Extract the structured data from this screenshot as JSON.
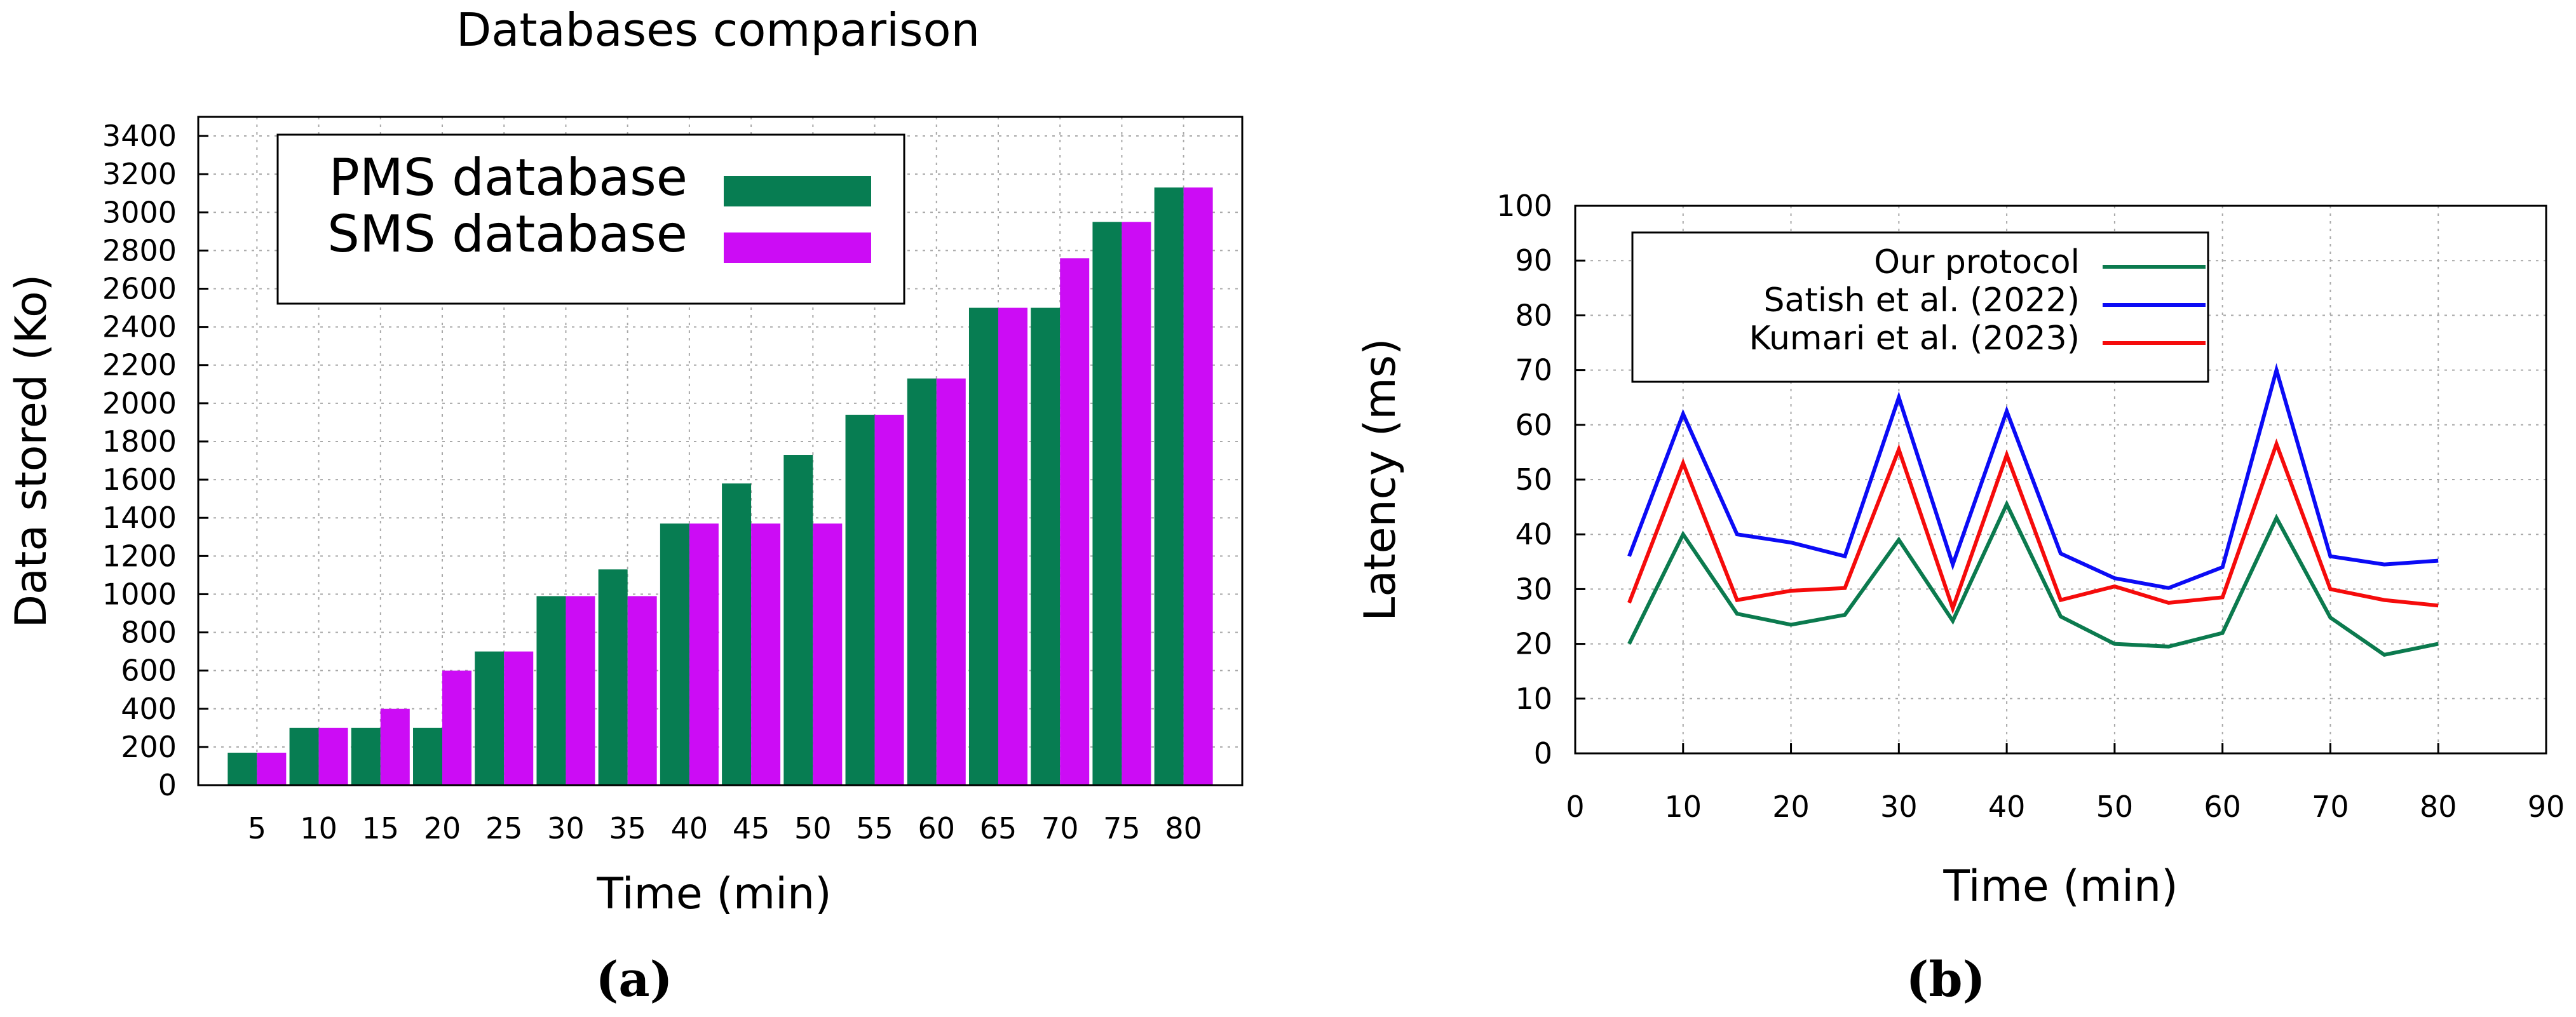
{
  "chart_data": [
    {
      "panel_label": "(a)",
      "type": "bar",
      "title": "Databases comparison",
      "xlabel": "Time (min)",
      "ylabel": "Data stored (Ko)",
      "ylim": [
        0,
        3500
      ],
      "yticks": [
        0,
        200,
        400,
        600,
        800,
        1000,
        1200,
        1400,
        1600,
        1800,
        2000,
        2200,
        2400,
        2600,
        2800,
        3000,
        3200,
        3400
      ],
      "grid": true,
      "legend_position": "top-left",
      "categories": [
        "5",
        "10",
        "15",
        "20",
        "25",
        "30",
        "35",
        "40",
        "45",
        "50",
        "55",
        "60",
        "65",
        "70",
        "75",
        "80"
      ],
      "series": [
        {
          "name": "PMS database",
          "color": "#077d52",
          "values": [
            170,
            300,
            300,
            300,
            700,
            990,
            1130,
            1370,
            1580,
            1730,
            1940,
            2130,
            2500,
            2500,
            2950,
            3130
          ]
        },
        {
          "name": "SMS database",
          "color": "#cc0cf5",
          "values": [
            170,
            300,
            400,
            600,
            700,
            990,
            990,
            1370,
            1370,
            1370,
            1940,
            2130,
            2500,
            2760,
            2950,
            3130
          ]
        }
      ]
    },
    {
      "panel_label": "(b)",
      "type": "line",
      "title": "",
      "xlabel": "Time (min)",
      "ylabel": "Latency (ms)",
      "xlim": [
        0,
        90
      ],
      "ylim": [
        0,
        100
      ],
      "xticks": [
        0,
        10,
        20,
        30,
        40,
        50,
        60,
        70,
        80,
        90
      ],
      "yticks": [
        0,
        10,
        20,
        30,
        40,
        50,
        60,
        70,
        80,
        90,
        100
      ],
      "grid": true,
      "legend_position": "top-left",
      "x": [
        5,
        10,
        15,
        20,
        25,
        30,
        35,
        40,
        45,
        50,
        55,
        60,
        65,
        70,
        75,
        80
      ],
      "series": [
        {
          "name": "Our protocol",
          "color": "#0b7a4e",
          "values": [
            20,
            40,
            25.5,
            23.5,
            25.3,
            39,
            24.2,
            45.5,
            25,
            20,
            19.5,
            22,
            43,
            24.8,
            18,
            20
          ]
        },
        {
          "name": "Satish et al. (2022)",
          "color": "#0b0bf5",
          "values": [
            36,
            62,
            40,
            38.5,
            36,
            65,
            34.5,
            62.5,
            36.5,
            32,
            30.2,
            34,
            70,
            36,
            34.5,
            35.2
          ]
        },
        {
          "name": "Kumari et al. (2023)",
          "color": "#f50b0b",
          "values": [
            27.5,
            53,
            28,
            29.7,
            30.2,
            55.5,
            26.5,
            54.5,
            28,
            30.5,
            27.5,
            28.5,
            56.5,
            30,
            28,
            27
          ]
        }
      ]
    }
  ]
}
